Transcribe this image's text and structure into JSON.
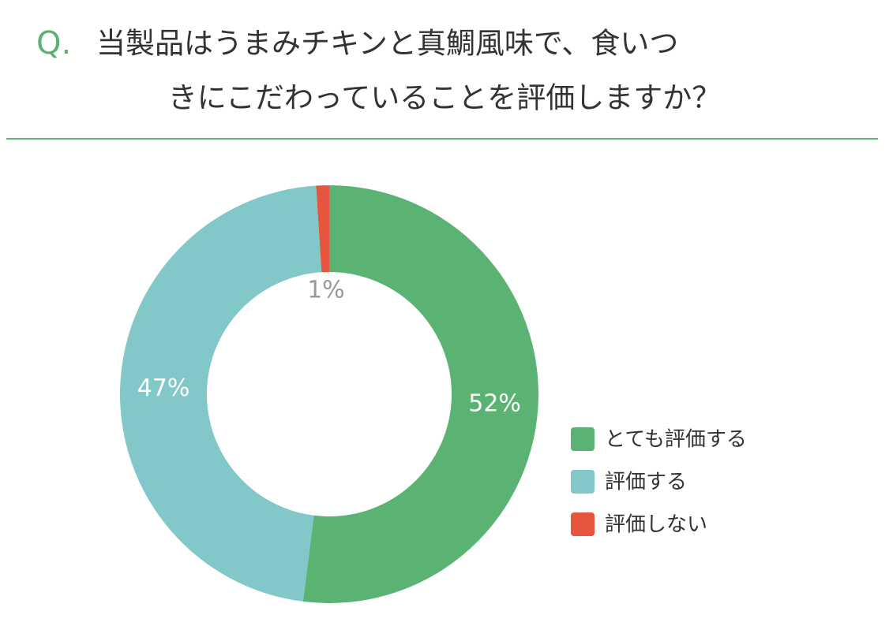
{
  "chart_data": {
    "type": "donut",
    "title_prefix": "Q.",
    "title": [
      "当製品はうまみチキンと真鯛風味で、食いつ",
      "きにこだわっていることを評価しますか？"
    ],
    "categories": [
      "とても評価する",
      "評価する",
      "評価しない"
    ],
    "values": [
      52,
      47,
      1
    ],
    "value_labels": [
      "52%",
      "47%",
      "1%"
    ],
    "colors": [
      "#5bb373",
      "#82c8c9",
      "#e8553e"
    ],
    "legend": "right"
  }
}
